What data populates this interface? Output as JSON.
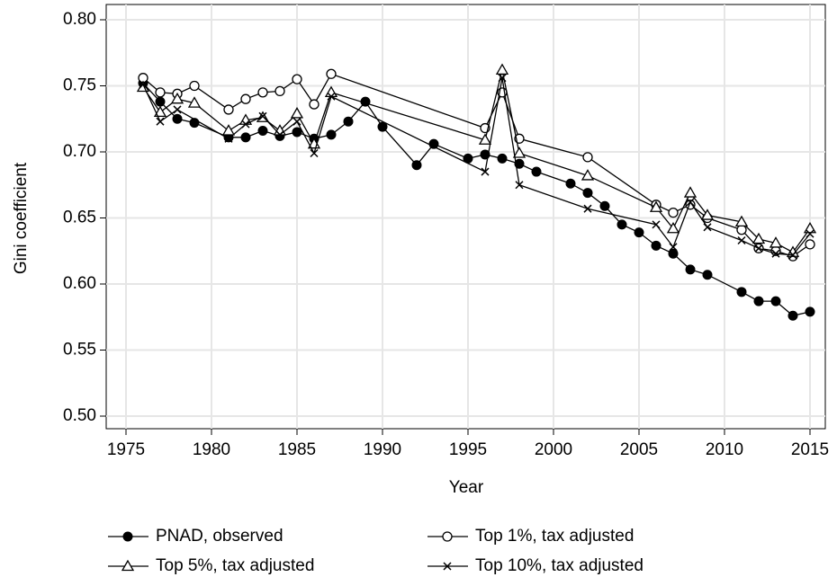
{
  "chart_data": {
    "type": "line",
    "xlabel": "Year",
    "ylabel": "Gini coefficient",
    "xlim": [
      1975,
      2015
    ],
    "ylim": [
      0.5,
      0.8
    ],
    "xticks": [
      1975,
      1980,
      1985,
      1990,
      1995,
      2000,
      2005,
      2010,
      2015
    ],
    "yticks": [
      {
        "value": 0.5,
        "label": "0.50"
      },
      0.55,
      {
        "value": 0.6,
        "label": "0.60"
      },
      0.65,
      {
        "value": 0.7,
        "label": "0.70"
      },
      0.75,
      {
        "value": 0.8,
        "label": "0.80"
      }
    ],
    "grid": true,
    "legend": "bottom",
    "series": [
      {
        "name": "PNAD, observed",
        "color": "#000000",
        "marker": "filled-circle",
        "x": [
          1976,
          1977,
          1978,
          1979,
          1981,
          1982,
          1983,
          1984,
          1985,
          1986,
          1987,
          1988,
          1989,
          1990,
          1992,
          1993,
          1995,
          1996,
          1997,
          1998,
          1999,
          2001,
          2002,
          2003,
          2004,
          2005,
          2006,
          2007,
          2008,
          2009,
          2011,
          2012,
          2013,
          2014,
          2015
        ],
        "values": [
          0.752,
          0.738,
          0.725,
          0.722,
          0.711,
          0.711,
          0.716,
          0.712,
          0.715,
          0.71,
          0.713,
          0.723,
          0.738,
          0.719,
          0.69,
          0.706,
          0.695,
          0.698,
          0.695,
          0.691,
          0.685,
          0.676,
          0.669,
          0.659,
          0.645,
          0.639,
          0.629,
          0.623,
          0.611,
          0.607,
          0.594,
          0.587,
          0.587,
          0.576,
          0.579
        ]
      },
      {
        "name": "Top 1%, tax adjusted",
        "color": "#000000",
        "marker": "open-circle",
        "x": [
          1976,
          1977,
          1978,
          1979,
          1981,
          1982,
          1983,
          1984,
          1985,
          1986,
          1987,
          1996,
          1997,
          1998,
          2002,
          2006,
          2007,
          2008,
          2009,
          2011,
          2012,
          2013,
          2014,
          2015
        ],
        "values": [
          0.756,
          0.745,
          0.744,
          0.75,
          0.732,
          0.74,
          0.745,
          0.746,
          0.755,
          0.736,
          0.759,
          0.718,
          0.745,
          0.71,
          0.696,
          0.66,
          0.654,
          0.66,
          0.65,
          0.641,
          0.627,
          0.625,
          0.621,
          0.63
        ]
      },
      {
        "name": "Top 5%, tax adjusted",
        "color": "#000000",
        "marker": "triangle",
        "x": [
          1976,
          1977,
          1978,
          1979,
          1981,
          1982,
          1983,
          1984,
          1985,
          1986,
          1987,
          1996,
          1997,
          1998,
          2002,
          2006,
          2007,
          2008,
          2009,
          2011,
          2012,
          2013,
          2014,
          2015
        ],
        "values": [
          0.749,
          0.73,
          0.74,
          0.737,
          0.716,
          0.724,
          0.726,
          0.716,
          0.729,
          0.706,
          0.745,
          0.709,
          0.762,
          0.699,
          0.682,
          0.658,
          0.642,
          0.669,
          0.652,
          0.647,
          0.634,
          0.631,
          0.624,
          0.642
        ]
      },
      {
        "name": "Top 10%, tax adjusted",
        "color": "#000000",
        "marker": "cross",
        "x": [
          1976,
          1977,
          1978,
          1981,
          1982,
          1983,
          1984,
          1985,
          1986,
          1987,
          1996,
          1997,
          1998,
          2002,
          2006,
          2007,
          2008,
          2009,
          2011,
          2012,
          2013,
          2014,
          2015
        ],
        "values": [
          0.751,
          0.723,
          0.732,
          0.71,
          0.721,
          0.727,
          0.713,
          0.723,
          0.699,
          0.742,
          0.685,
          0.756,
          0.675,
          0.657,
          0.645,
          0.628,
          0.662,
          0.643,
          0.633,
          0.627,
          0.623,
          0.622,
          0.638
        ]
      }
    ]
  }
}
